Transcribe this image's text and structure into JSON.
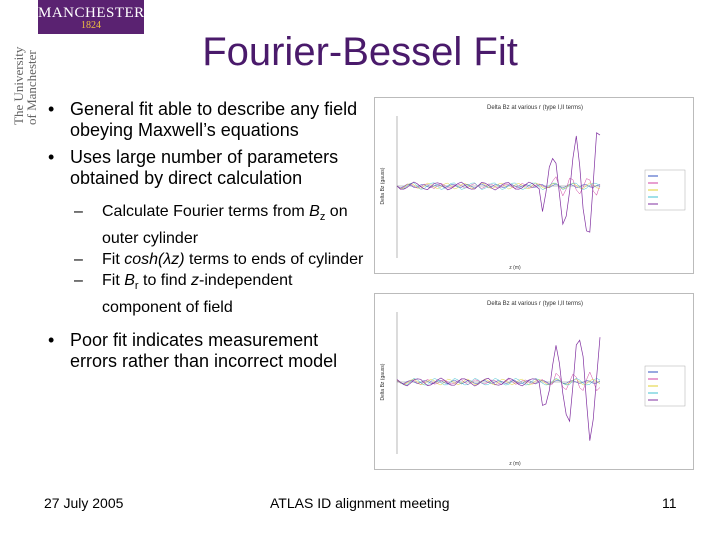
{
  "logo": {
    "line1": "MANCHESTER",
    "line2": "1824"
  },
  "university": {
    "line1": "The University",
    "line2": "of Manchester"
  },
  "title": "Fourier-Bessel Fit",
  "bullets": {
    "b1": "General fit able to describe any field obeying Maxwell’s equations",
    "b2": "Uses large number of parameters obtained by direct calculation",
    "s1_pre": "Calculate Fourier terms from ",
    "s1_var": "B",
    "s1_sub": "z",
    "s1_post": " on outer cylinder",
    "s2_pre": "Fit ",
    "s2_var": "cosh(λz)",
    "s2_post": " terms to ends of cylinder",
    "s3_pre": "Fit ",
    "s3_var": "B",
    "s3_sub": "r",
    "s3_mid": " to find ",
    "s3_var2": "z",
    "s3_post": "-independent component of field",
    "b3": "Poor fit indicates measurement errors rather than incorrect model"
  },
  "footer": {
    "date": "27 July 2005",
    "meeting": "ATLAS ID alignment meeting",
    "page": "11"
  },
  "chart_data": [
    {
      "type": "line",
      "title": "Delta Bz at various r (type I,II terms)",
      "xlabel": "z (m)",
      "ylabel": "Delta Bz (gauss)",
      "series_colors": [
        "#3050c0",
        "#d040a0",
        "#e0d030",
        "#40c0d0",
        "#8030a0"
      ]
    },
    {
      "type": "line",
      "title": "Delta Bz at various r (type I,II terms)",
      "xlabel": "z (m)",
      "ylabel": "Delta Bz (gauss)",
      "series_colors": [
        "#3050c0",
        "#d040a0",
        "#e0d030",
        "#40c0d0",
        "#8030a0"
      ]
    }
  ]
}
